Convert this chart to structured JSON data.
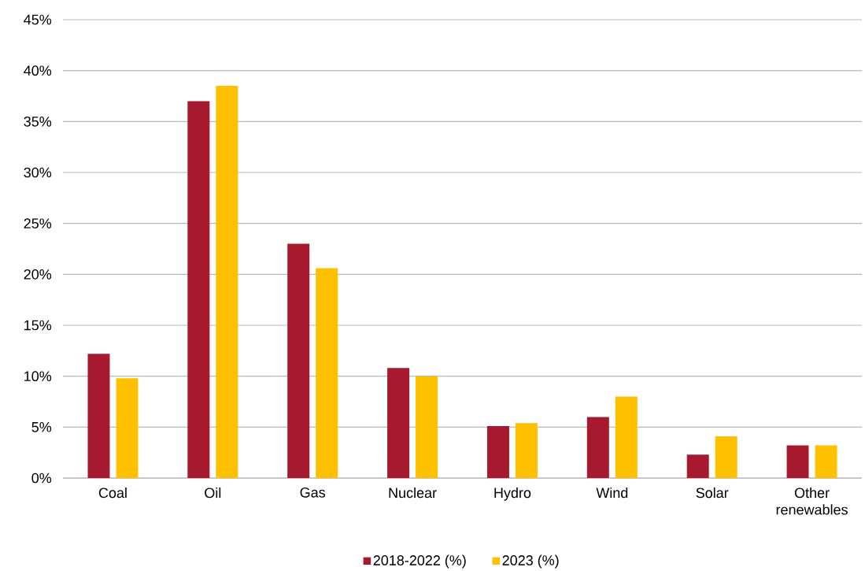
{
  "chart_data": {
    "type": "bar",
    "categories": [
      "Coal",
      "Oil",
      "Gas",
      "Nuclear",
      "Hydro",
      "Wind",
      "Solar",
      "Other renewables"
    ],
    "series": [
      {
        "name": "2018-2022 (%)",
        "color": "#a6192e",
        "values": [
          12.2,
          37.0,
          23.0,
          10.8,
          5.1,
          6.0,
          2.3,
          3.2
        ]
      },
      {
        "name": "2023 (%)",
        "color": "#ffc000",
        "values": [
          9.8,
          38.5,
          20.6,
          10.0,
          5.4,
          8.0,
          4.1,
          3.2
        ]
      }
    ],
    "ylim": [
      0,
      45
    ],
    "yticks": [
      {
        "value": 0,
        "label": "0%"
      },
      {
        "value": 5,
        "label": "5%"
      },
      {
        "value": 10,
        "label": "10%"
      },
      {
        "value": 15,
        "label": "15%"
      },
      {
        "value": 20,
        "label": "20%"
      },
      {
        "value": 25,
        "label": "25%"
      },
      {
        "value": 30,
        "label": "30%"
      },
      {
        "value": 35,
        "label": "35%"
      },
      {
        "value": 40,
        "label": "40%"
      },
      {
        "value": 45,
        "label": "45%"
      }
    ],
    "grid": "y",
    "legend": "bottom"
  }
}
